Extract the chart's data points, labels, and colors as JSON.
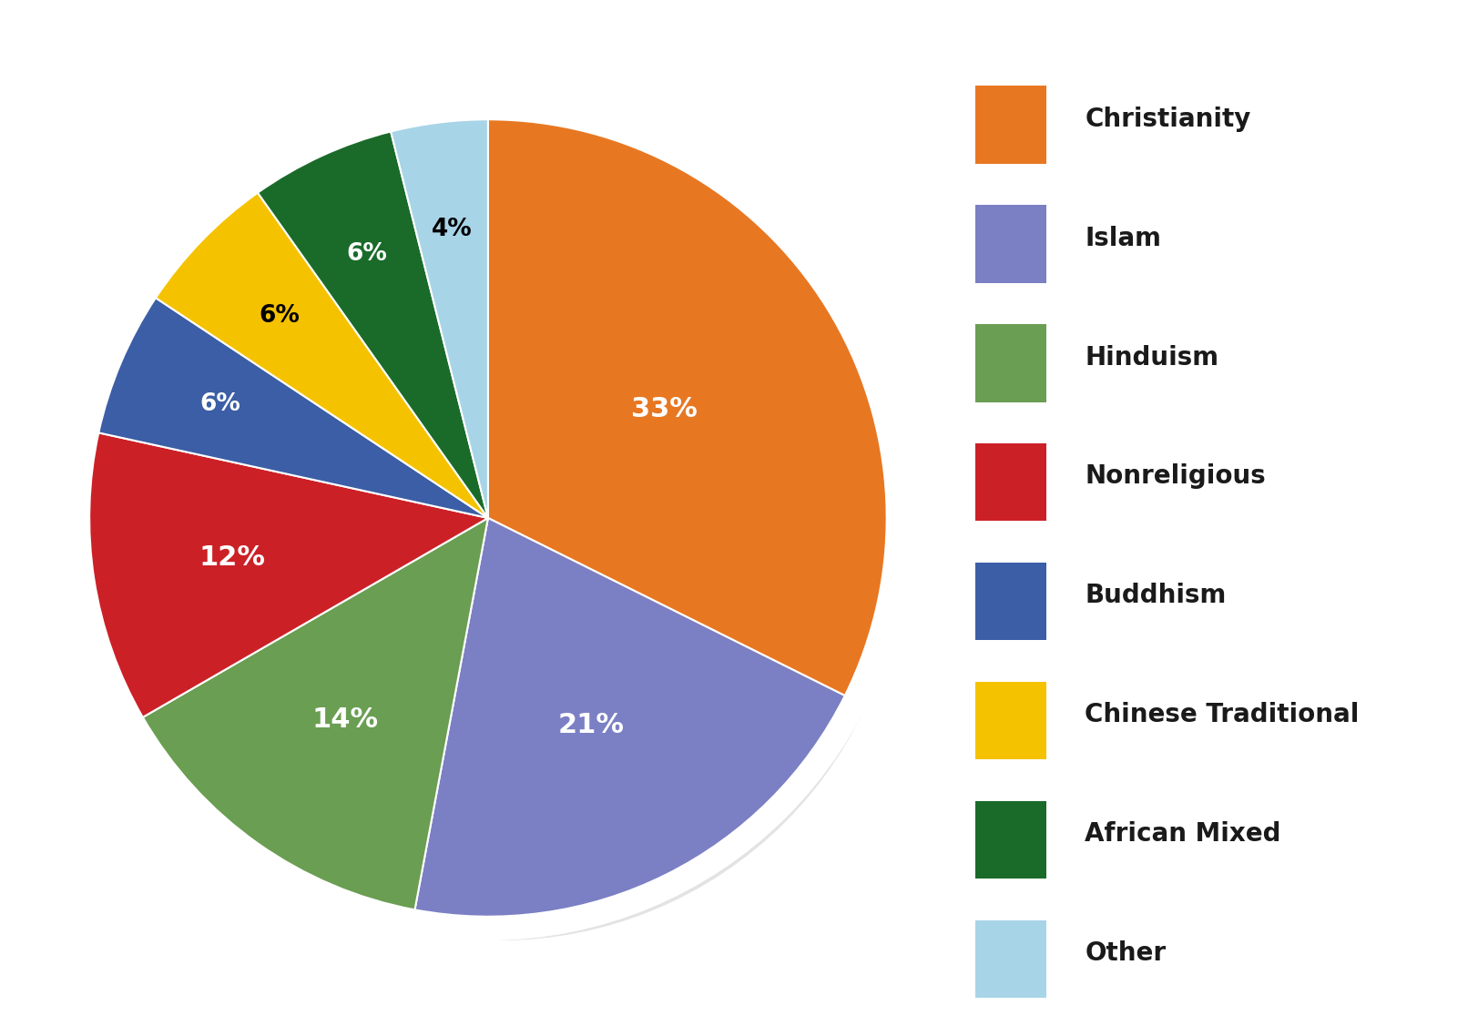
{
  "labels": [
    "Christianity",
    "Islam",
    "Hinduism",
    "Nonreligious",
    "Buddhism",
    "Chinese Traditional",
    "African Mixed",
    "Other"
  ],
  "values": [
    33,
    21,
    14,
    12,
    6,
    6,
    6,
    4
  ],
  "colors": [
    "#E87722",
    "#7B7FC4",
    "#6A9E52",
    "#CC2027",
    "#3B5EA6",
    "#F5C200",
    "#1A6B2A",
    "#A8D4E8"
  ],
  "label_colors": [
    "white",
    "white",
    "white",
    "white",
    "white",
    "black",
    "white",
    "black"
  ],
  "background_color": "#ffffff",
  "legend_fontsize": 20,
  "autopct_fontsize": 22,
  "startangle": 90
}
